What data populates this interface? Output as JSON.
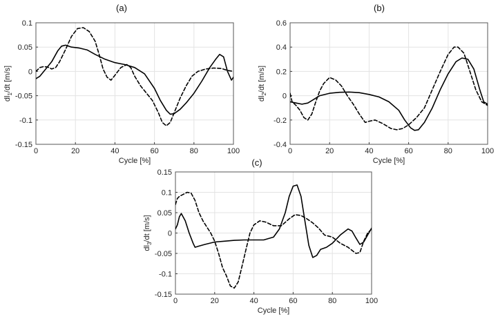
{
  "chart_data": [
    {
      "type": "line",
      "title": "(a)",
      "xlabel": "Cycle [%]",
      "ylabel_main": "dl",
      "ylabel_sub": "1",
      "ylabel_tail": "/dt [m/s]",
      "xlim": [
        0,
        100
      ],
      "ylim": [
        -0.15,
        0.1
      ],
      "xticks": [
        "0",
        "20",
        "40",
        "60",
        "80",
        "100"
      ],
      "yticks": [
        "-0.15",
        "-0.1",
        "-0.05",
        "0",
        "0.05",
        "0.1"
      ],
      "grid": true,
      "series": [
        {
          "style": "solid",
          "x": [
            0,
            2,
            5,
            8,
            11,
            13,
            15,
            18,
            22,
            26,
            30,
            35,
            40,
            45,
            50,
            55,
            60,
            63,
            66,
            68,
            70,
            73,
            76,
            80,
            84,
            88,
            91,
            93,
            95,
            97,
            99,
            100
          ],
          "y": [
            -0.015,
            -0.01,
            0.005,
            0.02,
            0.042,
            0.052,
            0.054,
            0.05,
            0.048,
            0.044,
            0.035,
            0.025,
            0.018,
            0.014,
            0.008,
            -0.005,
            -0.035,
            -0.06,
            -0.08,
            -0.088,
            -0.087,
            -0.078,
            -0.065,
            -0.045,
            -0.02,
            0.008,
            0.025,
            0.035,
            0.03,
            0.0,
            -0.018,
            -0.012
          ]
        },
        {
          "style": "dashed",
          "x": [
            0,
            2,
            4,
            6,
            8,
            10,
            12,
            15,
            18,
            21,
            24,
            27,
            30,
            32,
            34,
            36,
            38,
            40,
            43,
            46,
            48,
            50,
            53,
            56,
            59,
            62,
            64,
            66,
            68,
            70,
            73,
            76,
            79,
            82,
            86,
            90,
            94,
            97,
            100
          ],
          "y": [
            0.0,
            0.008,
            0.01,
            0.009,
            0.005,
            0.008,
            0.02,
            0.045,
            0.072,
            0.088,
            0.09,
            0.082,
            0.062,
            0.035,
            0.005,
            -0.012,
            -0.018,
            -0.008,
            0.008,
            0.014,
            0.008,
            -0.01,
            -0.03,
            -0.045,
            -0.06,
            -0.085,
            -0.105,
            -0.112,
            -0.105,
            -0.085,
            -0.055,
            -0.03,
            -0.01,
            0.0,
            0.005,
            0.007,
            0.006,
            0.002,
            0.0
          ]
        }
      ]
    },
    {
      "type": "line",
      "title": "(b)",
      "xlabel": "Cycle [%]",
      "ylabel_main": "dl",
      "ylabel_sub": "2",
      "ylabel_tail": "/dt [m/s]",
      "xlim": [
        0,
        100
      ],
      "ylim": [
        -0.4,
        0.6
      ],
      "xticks": [
        "0",
        "20",
        "40",
        "60",
        "80",
        "100"
      ],
      "yticks": [
        "-0.4",
        "-0.2",
        "0",
        "0.2",
        "0.4",
        "0.6"
      ],
      "grid": true,
      "series": [
        {
          "style": "solid",
          "x": [
            0,
            3,
            6,
            9,
            12,
            15,
            20,
            25,
            30,
            35,
            40,
            45,
            50,
            55,
            58,
            61,
            63,
            65,
            68,
            72,
            76,
            80,
            84,
            87,
            90,
            93,
            96,
            98,
            100
          ],
          "y": [
            -0.05,
            -0.06,
            -0.07,
            -0.06,
            -0.03,
            0.0,
            0.02,
            0.028,
            0.03,
            0.025,
            0.01,
            -0.01,
            -0.05,
            -0.12,
            -0.2,
            -0.265,
            -0.285,
            -0.28,
            -0.22,
            -0.1,
            0.05,
            0.18,
            0.28,
            0.31,
            0.3,
            0.22,
            0.05,
            -0.05,
            -0.07
          ]
        },
        {
          "style": "dashed",
          "x": [
            0,
            1,
            3,
            5,
            7,
            9,
            11,
            13,
            15,
            17,
            20,
            23,
            26,
            29,
            32,
            35,
            38,
            40,
            43,
            47,
            51,
            54,
            57,
            60,
            64,
            68,
            72,
            76,
            80,
            83,
            85,
            88,
            91,
            94,
            97,
            100
          ],
          "y": [
            0.02,
            -0.05,
            -0.08,
            -0.12,
            -0.18,
            -0.2,
            -0.15,
            -0.05,
            0.04,
            0.1,
            0.15,
            0.13,
            0.08,
            0.0,
            -0.07,
            -0.15,
            -0.22,
            -0.21,
            -0.2,
            -0.23,
            -0.27,
            -0.28,
            -0.27,
            -0.24,
            -0.18,
            -0.1,
            0.05,
            0.2,
            0.34,
            0.4,
            0.4,
            0.35,
            0.2,
            0.05,
            -0.05,
            -0.08
          ]
        }
      ]
    },
    {
      "type": "line",
      "title": "(c)",
      "xlabel": "Cycle [%]",
      "ylabel_main": "dl",
      "ylabel_sub": "3",
      "ylabel_tail": "/dt [m/s]",
      "xlim": [
        0,
        100
      ],
      "ylim": [
        -0.15,
        0.15
      ],
      "xticks": [
        "0",
        "20",
        "40",
        "60",
        "80",
        "100"
      ],
      "yticks": [
        "-0.15",
        "-0.1",
        "-0.05",
        "0",
        "0.05",
        "0.1",
        "0.15"
      ],
      "grid": true,
      "series": [
        {
          "style": "solid",
          "x": [
            0,
            1,
            2,
            3,
            5,
            7,
            9,
            10,
            12,
            15,
            20,
            25,
            30,
            35,
            40,
            45,
            50,
            53,
            56,
            58,
            60,
            62,
            64,
            66,
            68,
            70,
            72,
            74,
            77,
            80,
            84,
            88,
            90,
            92,
            94,
            96,
            98,
            100
          ],
          "y": [
            0.01,
            0.02,
            0.04,
            0.048,
            0.03,
            0.0,
            -0.025,
            -0.035,
            -0.032,
            -0.028,
            -0.022,
            -0.02,
            -0.018,
            -0.017,
            -0.017,
            -0.017,
            -0.01,
            0.01,
            0.05,
            0.09,
            0.115,
            0.118,
            0.09,
            0.03,
            -0.03,
            -0.06,
            -0.055,
            -0.04,
            -0.035,
            -0.025,
            -0.005,
            0.01,
            0.005,
            -0.012,
            -0.028,
            -0.022,
            -0.005,
            0.012
          ]
        },
        {
          "style": "dashed",
          "x": [
            0,
            1,
            2,
            4,
            6,
            8,
            10,
            12,
            14,
            16,
            18,
            20,
            22,
            24,
            26,
            28,
            30,
            32,
            34,
            36,
            38,
            40,
            43,
            46,
            50,
            54,
            58,
            61,
            64,
            67,
            70,
            73,
            76,
            80,
            84,
            88,
            92,
            94,
            96,
            98,
            100
          ],
          "y": [
            0.07,
            0.085,
            0.09,
            0.095,
            0.1,
            0.098,
            0.08,
            0.05,
            0.03,
            0.015,
            0.0,
            -0.02,
            -0.05,
            -0.085,
            -0.105,
            -0.13,
            -0.135,
            -0.12,
            -0.08,
            -0.04,
            0.0,
            0.02,
            0.03,
            0.027,
            0.018,
            0.018,
            0.035,
            0.045,
            0.043,
            0.035,
            0.025,
            0.012,
            -0.005,
            -0.01,
            -0.025,
            -0.035,
            -0.05,
            -0.048,
            -0.02,
            0.0,
            0.01
          ]
        }
      ]
    }
  ]
}
